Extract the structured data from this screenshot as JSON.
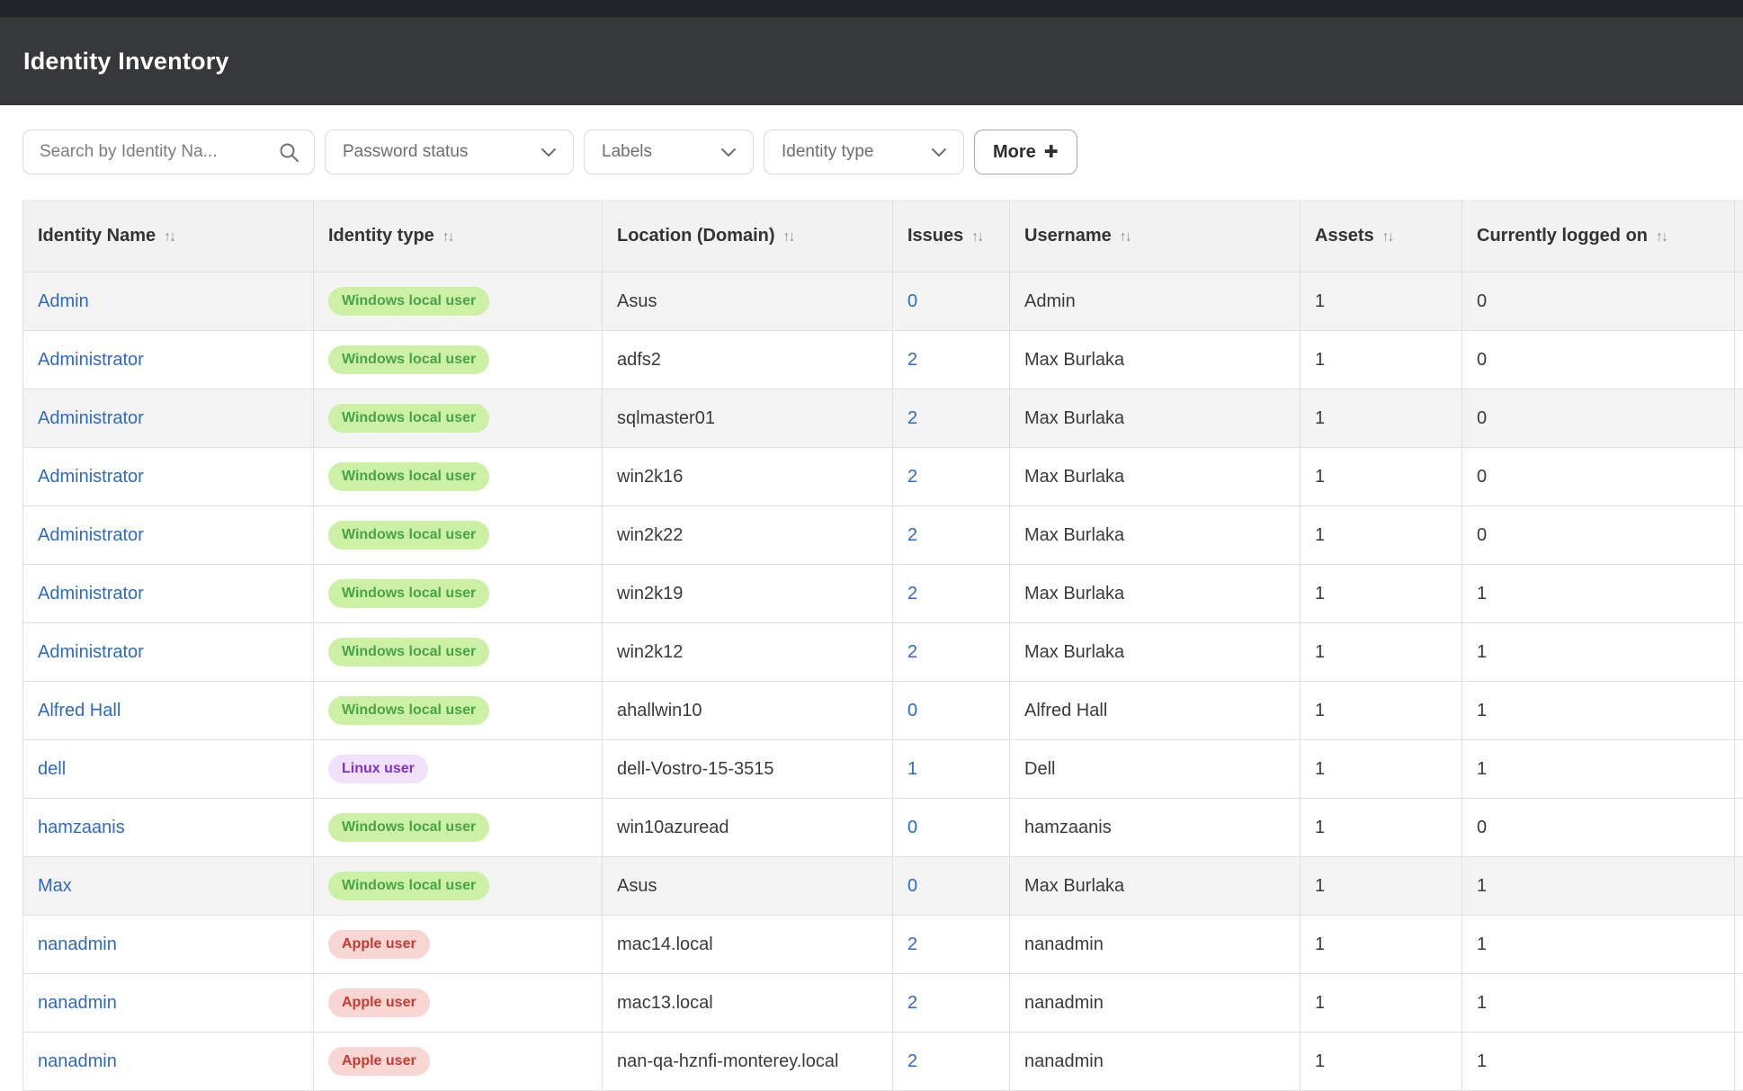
{
  "header": {
    "title": "Identity Inventory"
  },
  "filters": {
    "search_placeholder": "Search by Identity Na...",
    "dropdowns": [
      {
        "label": "Password status"
      },
      {
        "label": "Labels"
      },
      {
        "label": "Identity type"
      }
    ],
    "more_label": "More",
    "plus_glyph": "✚"
  },
  "icons": {
    "sort_glyph": "↑↓"
  },
  "colors": {
    "top_strip": "#22242a",
    "header_bg": "#37383a",
    "link_blue": "#2e6ac1",
    "table_header_bg": "#f2f2f2",
    "shaded_row_bg": "#f4f4f4",
    "badge_windows_bg": "#cdf1a4",
    "badge_windows_text": "#48a445",
    "badge_linux_bg": "#f0e2fb",
    "badge_linux_text": "#8430cd",
    "badge_apple_bg": "#f7d6d3",
    "badge_apple_text": "#c53a31"
  },
  "table": {
    "columns": [
      {
        "label": "Identity Name"
      },
      {
        "label": "Identity type"
      },
      {
        "label": "Location (Domain)"
      },
      {
        "label": "Issues"
      },
      {
        "label": "Username"
      },
      {
        "label": "Assets"
      },
      {
        "label": "Currently logged on"
      }
    ],
    "rows": [
      {
        "identity_name": "Admin",
        "identity_type": "Windows local user",
        "type_variant": "windows",
        "location": "Asus",
        "issues": "0",
        "username": "Admin",
        "assets": "1",
        "currently_logged_on": "0",
        "shaded": true
      },
      {
        "identity_name": "Administrator",
        "identity_type": "Windows local user",
        "type_variant": "windows",
        "location": "adfs2",
        "issues": "2",
        "username": "Max Burlaka",
        "assets": "1",
        "currently_logged_on": "0",
        "shaded": false
      },
      {
        "identity_name": "Administrator",
        "identity_type": "Windows local user",
        "type_variant": "windows",
        "location": "sqlmaster01",
        "issues": "2",
        "username": "Max Burlaka",
        "assets": "1",
        "currently_logged_on": "0",
        "shaded": true
      },
      {
        "identity_name": "Administrator",
        "identity_type": "Windows local user",
        "type_variant": "windows",
        "location": "win2k16",
        "issues": "2",
        "username": "Max Burlaka",
        "assets": "1",
        "currently_logged_on": "0",
        "shaded": false
      },
      {
        "identity_name": "Administrator",
        "identity_type": "Windows local user",
        "type_variant": "windows",
        "location": "win2k22",
        "issues": "2",
        "username": "Max Burlaka",
        "assets": "1",
        "currently_logged_on": "0",
        "shaded": false
      },
      {
        "identity_name": "Administrator",
        "identity_type": "Windows local user",
        "type_variant": "windows",
        "location": "win2k19",
        "issues": "2",
        "username": "Max Burlaka",
        "assets": "1",
        "currently_logged_on": "1",
        "shaded": false
      },
      {
        "identity_name": "Administrator",
        "identity_type": "Windows local user",
        "type_variant": "windows",
        "location": "win2k12",
        "issues": "2",
        "username": "Max Burlaka",
        "assets": "1",
        "currently_logged_on": "1",
        "shaded": false
      },
      {
        "identity_name": "Alfred Hall",
        "identity_type": "Windows local user",
        "type_variant": "windows",
        "location": "ahallwin10",
        "issues": "0",
        "username": "Alfred Hall",
        "assets": "1",
        "currently_logged_on": "1",
        "shaded": false
      },
      {
        "identity_name": "dell",
        "identity_type": "Linux user",
        "type_variant": "linux",
        "location": "dell-Vostro-15-3515",
        "issues": "1",
        "username": "Dell",
        "assets": "1",
        "currently_logged_on": "1",
        "shaded": false
      },
      {
        "identity_name": "hamzaanis",
        "identity_type": "Windows local user",
        "type_variant": "windows",
        "location": "win10azuread",
        "issues": "0",
        "username": "hamzaanis",
        "assets": "1",
        "currently_logged_on": "0",
        "shaded": false
      },
      {
        "identity_name": "Max",
        "identity_type": "Windows local user",
        "type_variant": "windows",
        "location": "Asus",
        "issues": "0",
        "username": "Max Burlaka",
        "assets": "1",
        "currently_logged_on": "1",
        "shaded": true
      },
      {
        "identity_name": "nanadmin",
        "identity_type": "Apple user",
        "type_variant": "apple",
        "location": "mac14.local",
        "issues": "2",
        "username": "nanadmin",
        "assets": "1",
        "currently_logged_on": "1",
        "shaded": false
      },
      {
        "identity_name": "nanadmin",
        "identity_type": "Apple user",
        "type_variant": "apple",
        "location": "mac13.local",
        "issues": "2",
        "username": "nanadmin",
        "assets": "1",
        "currently_logged_on": "1",
        "shaded": false
      },
      {
        "identity_name": "nanadmin",
        "identity_type": "Apple user",
        "type_variant": "apple",
        "location": "nan-qa-hznfi-monterey.local",
        "issues": "2",
        "username": "nanadmin",
        "assets": "1",
        "currently_logged_on": "1",
        "shaded": false
      }
    ]
  }
}
